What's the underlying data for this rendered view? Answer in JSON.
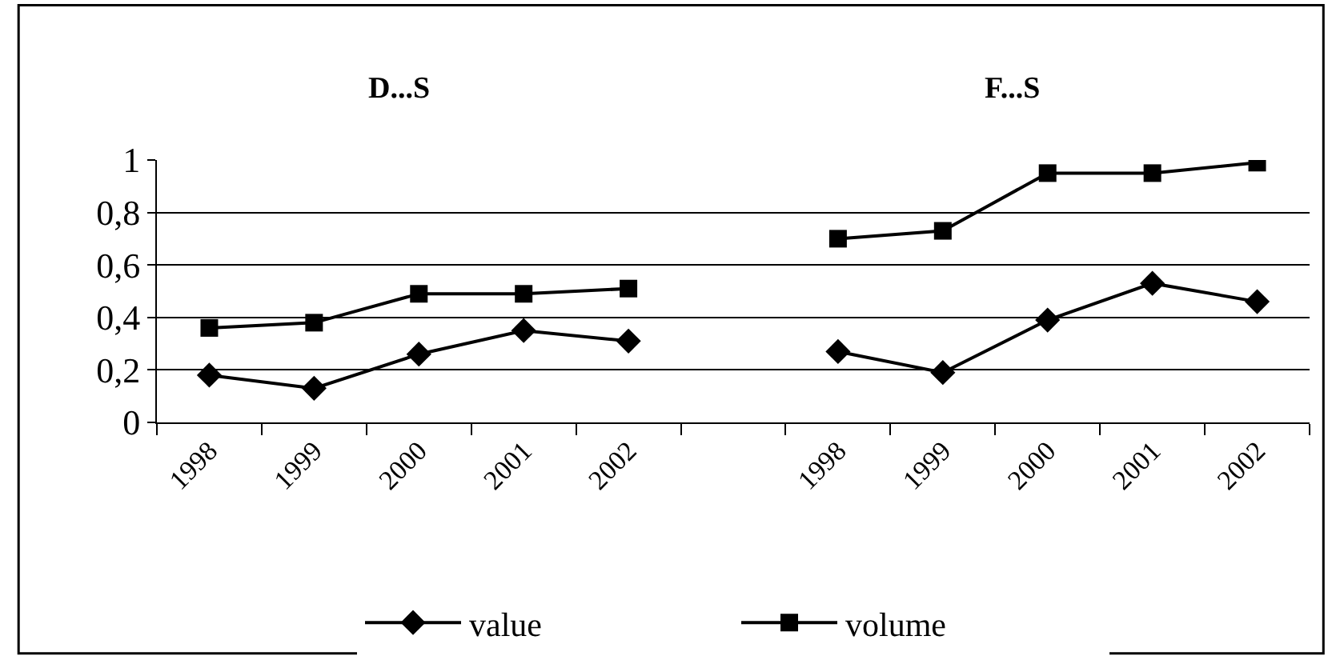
{
  "chart_data": {
    "type": "line",
    "annotations": [
      "D...S",
      "F...S"
    ],
    "categories": [
      "1998",
      "1999",
      "2000",
      "2001",
      "2002",
      null,
      "1998",
      "1999",
      "2000",
      "2001",
      "2002"
    ],
    "series": [
      {
        "name": "value",
        "color": "#000000",
        "marker": "diamond",
        "values": [
          0.18,
          0.13,
          0.26,
          0.35,
          0.31,
          null,
          0.27,
          0.19,
          0.39,
          0.53,
          0.46
        ]
      },
      {
        "name": "volume",
        "color": "#000000",
        "marker": "square",
        "values": [
          0.36,
          0.38,
          0.49,
          0.49,
          0.51,
          null,
          0.7,
          0.73,
          0.95,
          0.95,
          0.99
        ]
      }
    ],
    "ylim": [
      0,
      1
    ],
    "yticks": [
      0,
      {
        "value": 0.2,
        "label": "0,2"
      },
      {
        "value": 0.4,
        "label": "0,4"
      },
      {
        "value": 0.6,
        "label": "0,6"
      },
      {
        "value": 0.8,
        "label": "0,8"
      },
      1
    ],
    "grid": "y",
    "legend": "bottom",
    "line_style": "solid"
  }
}
